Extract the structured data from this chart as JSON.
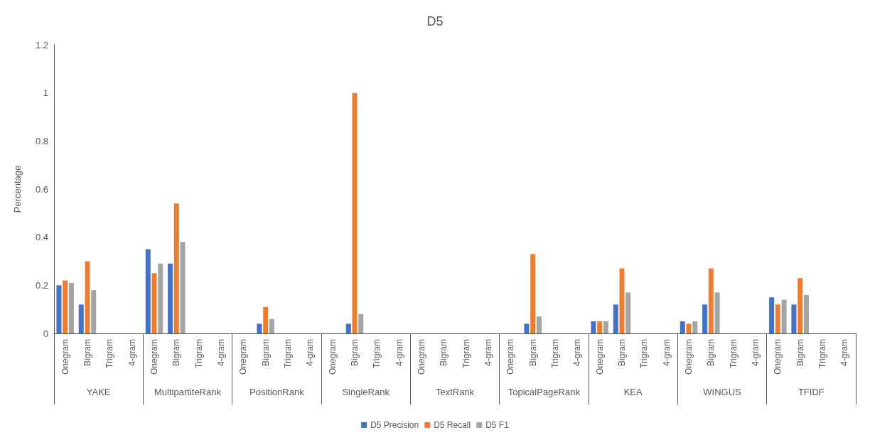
{
  "chart_data": {
    "type": "bar",
    "title": "D5",
    "ylabel": "Percentage",
    "categories": [
      "Onegram",
      "Bigram",
      "Trigram",
      "4-gram",
      "Onegram",
      "Bigram",
      "Trigram",
      "4-gram",
      "Onegram",
      "Bigram",
      "Trigram",
      "4-gram",
      "Onegram",
      "Bigram",
      "Trigram",
      "4-gram",
      "Onegram",
      "Bigram",
      "Trigram",
      "4-gram",
      "Onegram",
      "Bigram",
      "Trigram",
      "4-gram",
      "Onegram",
      "Bigram",
      "Trigram",
      "4-gram",
      "Onegram",
      "Bigram",
      "Trigram",
      "4-gram",
      "Onegram",
      "Bigram",
      "Trigram",
      "4-gram"
    ],
    "annotations": [
      "YAKE",
      "MultipartiteRank",
      "PositionRank",
      "SingleRank",
      "TextRank",
      "TopicalPageRank",
      "KEA",
      "WINGUS",
      "TFIDF"
    ],
    "series": [
      {
        "name": "D5 Precision",
        "color": "#4472c4",
        "values": [
          0.2,
          0.12,
          0,
          0,
          0.35,
          0.29,
          0,
          0,
          0,
          0.04,
          0,
          0,
          0,
          0.04,
          0,
          0,
          0,
          0,
          0,
          0,
          0,
          0.04,
          0,
          0,
          0.05,
          0.12,
          0,
          0,
          0.05,
          0.12,
          0,
          0,
          0.15,
          0.12,
          0,
          0
        ]
      },
      {
        "name": "D5 Recall",
        "color": "#ed7d31",
        "values": [
          0.22,
          0.3,
          0,
          0,
          0.25,
          0.54,
          0,
          0,
          0,
          0.11,
          0,
          0,
          0,
          1.0,
          0,
          0,
          0,
          0,
          0,
          0,
          0,
          0.33,
          0,
          0,
          0.05,
          0.27,
          0,
          0,
          0.04,
          0.27,
          0,
          0,
          0.12,
          0.23,
          0,
          0
        ]
      },
      {
        "name": "D5 F1",
        "color": "#a5a5a5",
        "values": [
          0.21,
          0.18,
          0,
          0,
          0.29,
          0.38,
          0,
          0,
          0,
          0.06,
          0,
          0,
          0,
          0.08,
          0,
          0,
          0,
          0,
          0,
          0,
          0,
          0.07,
          0,
          0,
          0.05,
          0.17,
          0,
          0,
          0.05,
          0.17,
          0,
          0,
          0.14,
          0.16,
          0,
          0
        ]
      }
    ],
    "ylim": [
      0,
      1.2
    ],
    "yticks": [
      0,
      0.2,
      0.4,
      0.6,
      0.8,
      1,
      1.2
    ],
    "grid": false,
    "legend": "bottom"
  }
}
